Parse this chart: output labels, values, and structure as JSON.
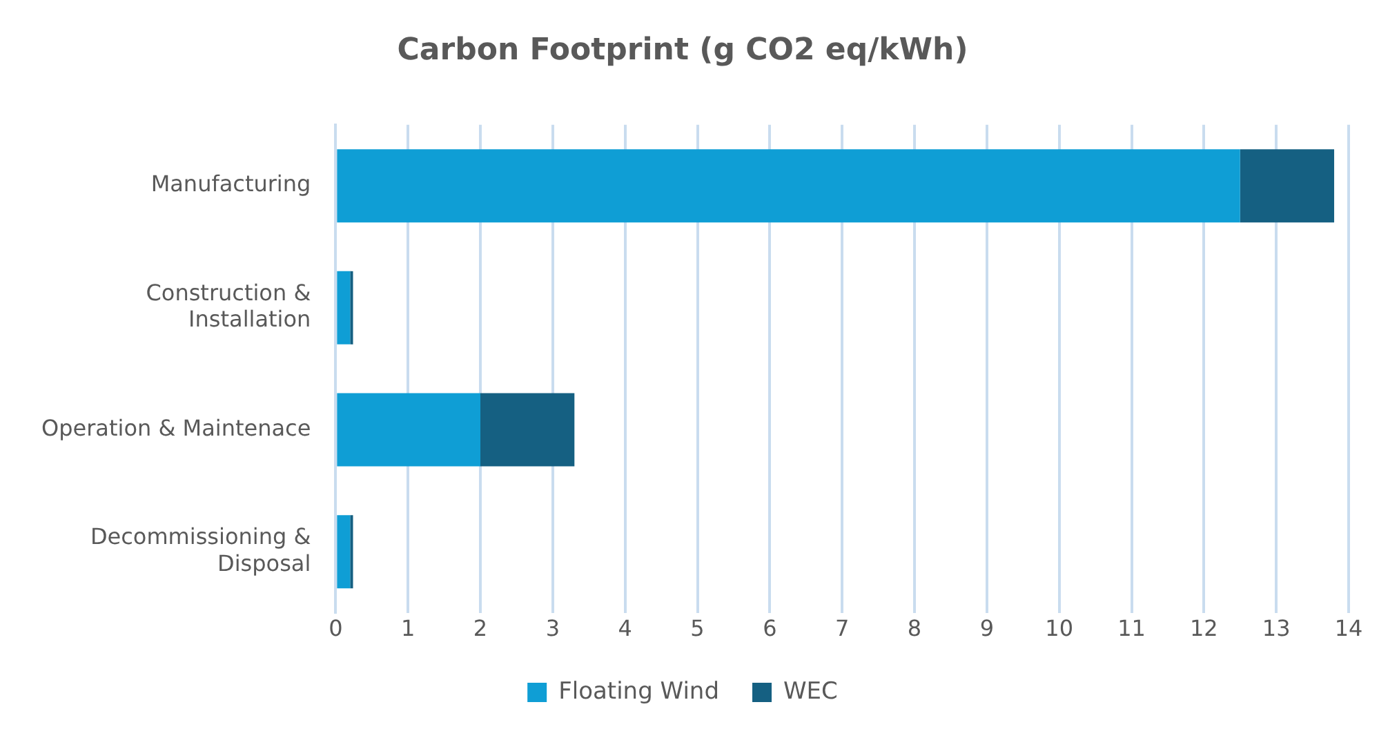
{
  "chart_data": {
    "type": "bar",
    "orientation": "horizontal",
    "stacked": true,
    "title": "Carbon Footprint (g CO2 eq/kWh)",
    "categories": [
      "Manufacturing",
      "Construction &\nInstallation",
      "Operation & Maintenace",
      "Decommissioning &\nDisposal"
    ],
    "series": [
      {
        "name": "Floating Wind",
        "color": "#0f9ed5",
        "values": [
          12.5,
          0.2,
          2.0,
          0.2
        ]
      },
      {
        "name": "WEC",
        "color": "#156082",
        "values": [
          1.3,
          0.04,
          1.3,
          0.04
        ]
      }
    ],
    "xlim": [
      0,
      14
    ],
    "xticks": [
      0,
      1,
      2,
      3,
      4,
      5,
      6,
      7,
      8,
      9,
      10,
      11,
      12,
      13,
      14
    ],
    "grid": "x",
    "legend": "bottom"
  }
}
